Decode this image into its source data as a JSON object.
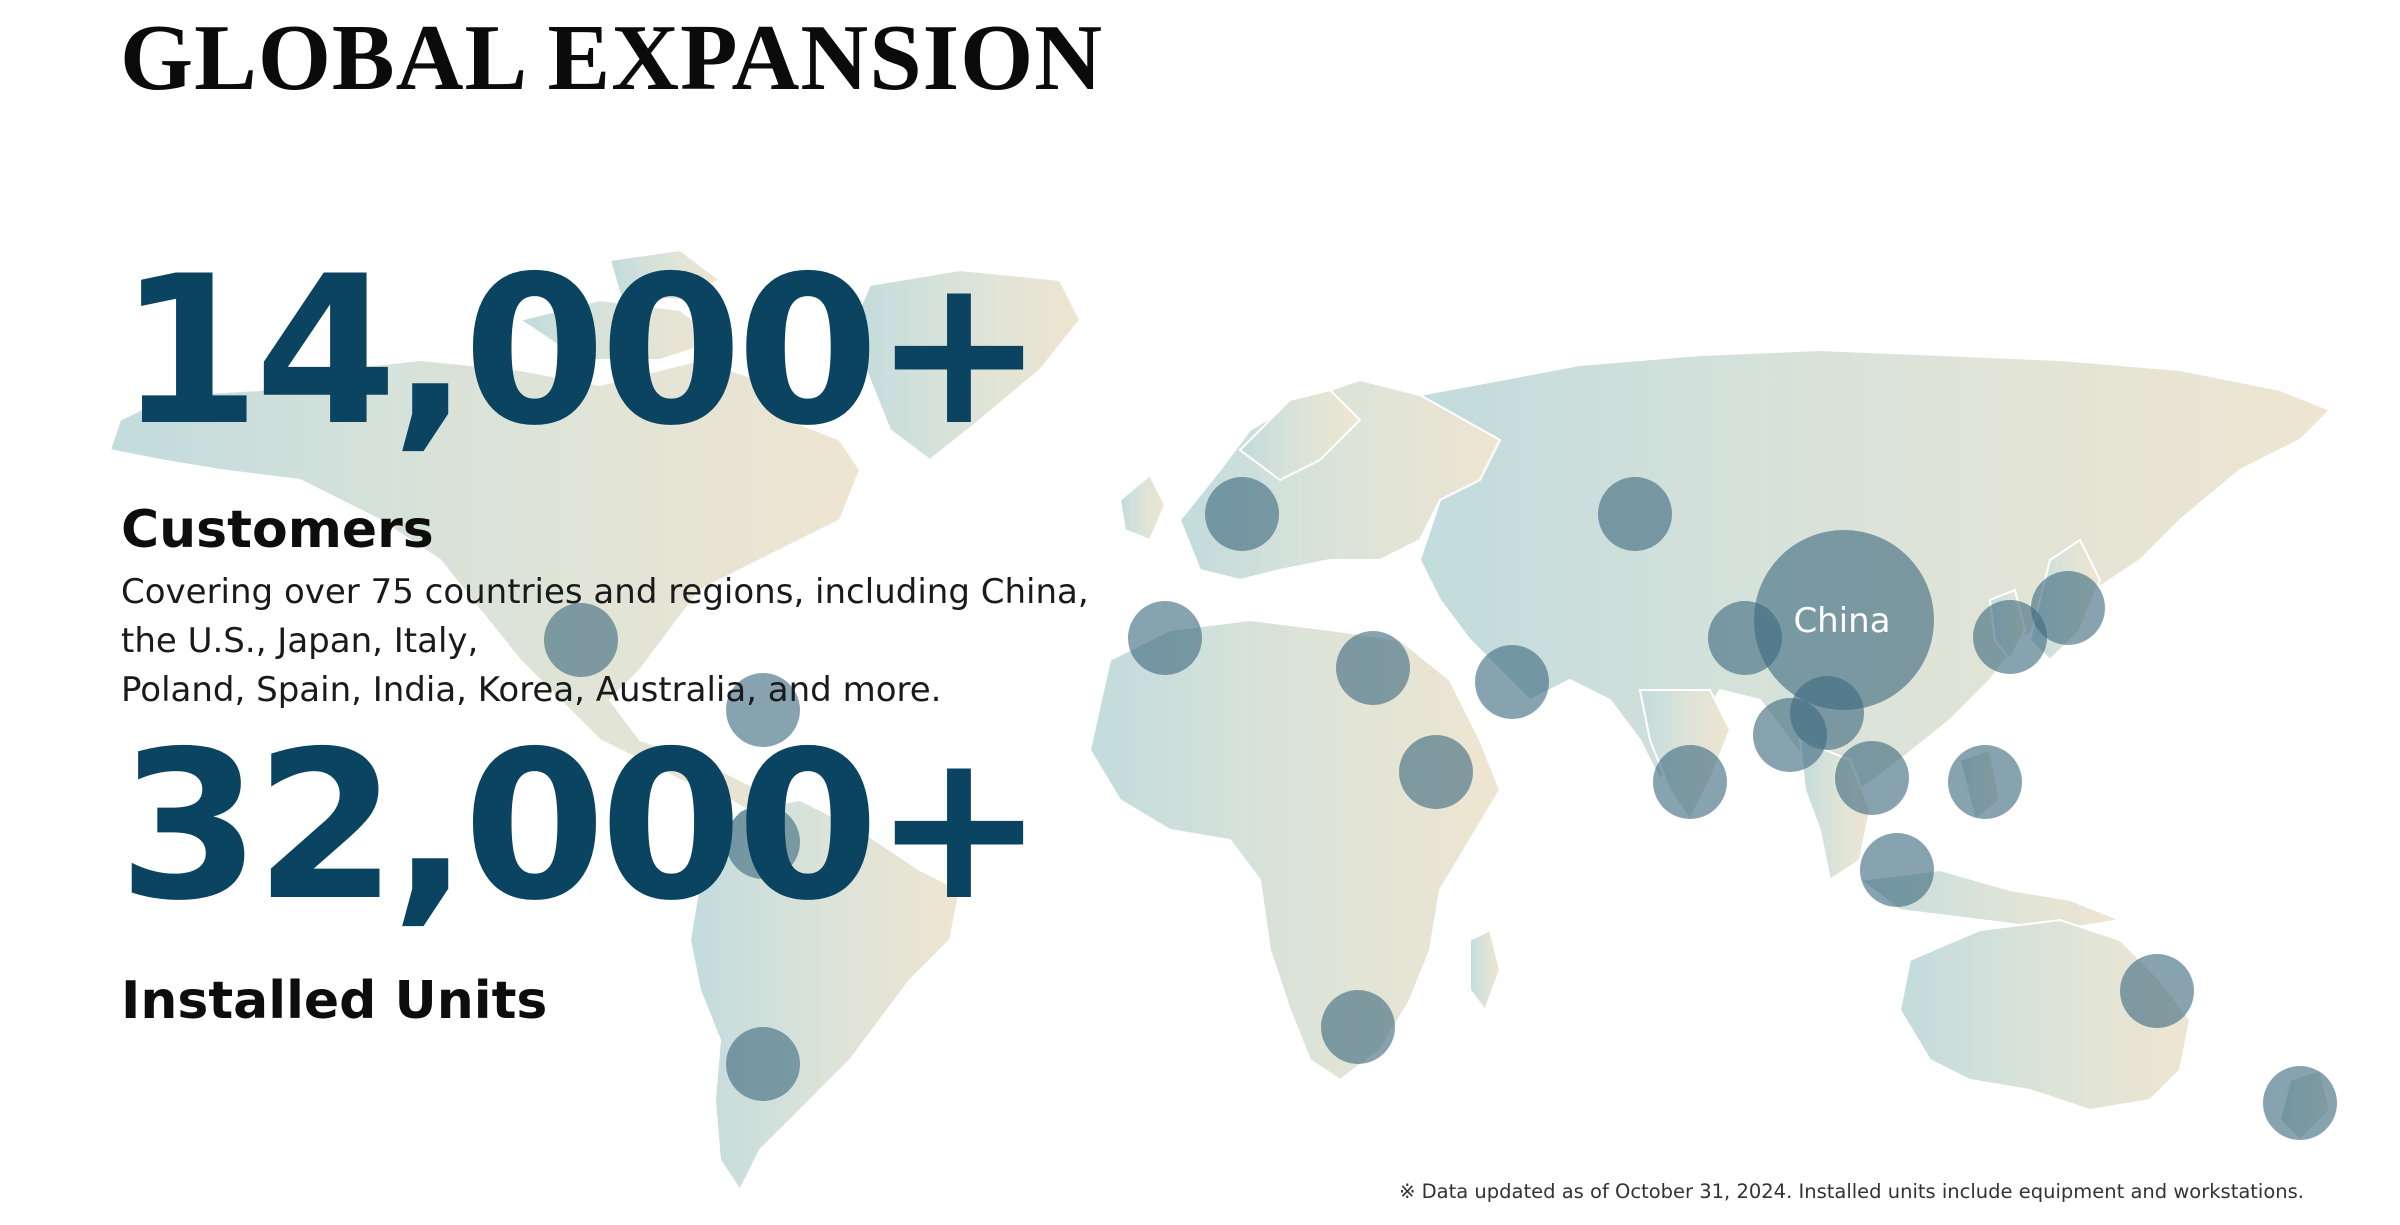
{
  "title": "GLOBAL EXPANSION",
  "stats": [
    {
      "value": "14,000+",
      "label": "Customers"
    },
    {
      "value": "32,000+",
      "label": "Installed Units"
    }
  ],
  "description": {
    "line1": "Covering over 75 countries and regions, including China,",
    "line2": "the U.S., Japan, Italy,",
    "line3": "Poland, Spain, India, Korea, Australia, and more."
  },
  "map_label": "China",
  "footnote": "※ Data updated as of October 31, 2024. Installed units include equipment and workstations.",
  "colors": {
    "number": "#0b4460",
    "marker": "#3f6b80",
    "map_gradient_start": "#b8d6d8",
    "map_gradient_end": "#ece1ca"
  }
}
